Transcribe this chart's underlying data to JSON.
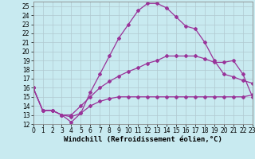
{
  "xlabel": "Windchill (Refroidissement éolien,°C)",
  "background_color": "#c8eaf0",
  "grid_color": "#b0c8d0",
  "line_color": "#993399",
  "xlim": [
    0,
    23
  ],
  "ylim": [
    12,
    25.5
  ],
  "xticks": [
    0,
    1,
    2,
    3,
    4,
    5,
    6,
    7,
    8,
    9,
    10,
    11,
    12,
    13,
    14,
    15,
    16,
    17,
    18,
    19,
    20,
    21,
    22,
    23
  ],
  "yticks": [
    12,
    13,
    14,
    15,
    16,
    17,
    18,
    19,
    20,
    21,
    22,
    23,
    24,
    25
  ],
  "curve1_x": [
    0,
    1,
    2,
    3,
    4,
    5,
    6,
    7,
    8,
    9,
    10,
    11,
    12,
    13,
    14,
    15,
    16,
    17,
    18,
    19,
    20,
    21,
    22,
    23
  ],
  "curve1_y": [
    16.0,
    13.5,
    13.5,
    13.0,
    12.2,
    13.2,
    15.5,
    17.5,
    19.5,
    21.5,
    23.0,
    24.5,
    25.3,
    25.3,
    24.8,
    23.8,
    22.8,
    22.5,
    21.0,
    19.0,
    17.5,
    17.2,
    16.8,
    16.5
  ],
  "curve2_x": [
    0,
    1,
    2,
    3,
    4,
    5,
    6,
    7,
    8,
    9,
    10,
    11,
    12,
    13,
    14,
    15,
    16,
    17,
    18,
    19,
    20,
    21,
    22,
    23
  ],
  "curve2_y": [
    16.0,
    13.5,
    13.5,
    13.0,
    13.0,
    14.0,
    15.0,
    16.0,
    16.7,
    17.3,
    17.8,
    18.2,
    18.7,
    19.0,
    19.5,
    19.5,
    19.5,
    19.5,
    19.2,
    18.8,
    18.8,
    19.0,
    17.5,
    15.0
  ],
  "curve3_x": [
    0,
    1,
    2,
    3,
    4,
    5,
    6,
    7,
    8,
    9,
    10,
    11,
    12,
    13,
    14,
    15,
    16,
    17,
    18,
    19,
    20,
    21,
    22,
    23
  ],
  "curve3_y": [
    16.0,
    13.5,
    13.5,
    13.0,
    12.8,
    13.2,
    14.0,
    14.5,
    14.8,
    15.0,
    15.0,
    15.0,
    15.0,
    15.0,
    15.0,
    15.0,
    15.0,
    15.0,
    15.0,
    15.0,
    15.0,
    15.0,
    15.0,
    15.2
  ],
  "tick_fontsize": 5.5,
  "label_fontsize": 6.5,
  "marker": "D",
  "markersize": 2.0,
  "linewidth": 0.9
}
